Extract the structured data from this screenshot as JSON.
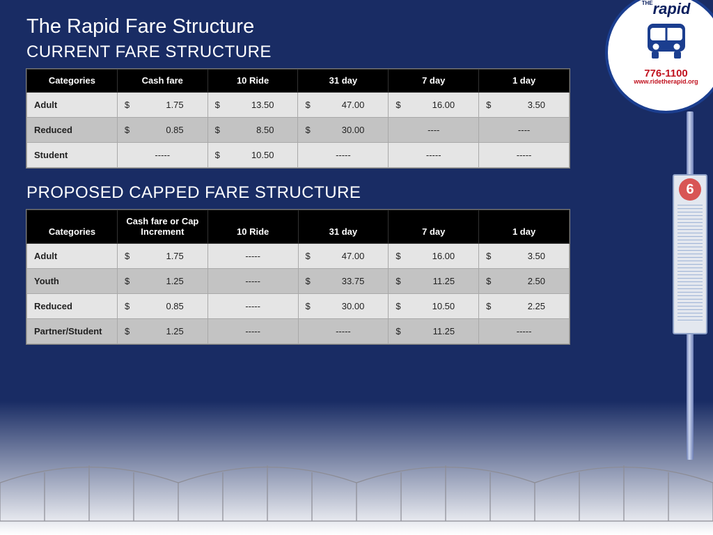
{
  "title": "The Rapid Fare Structure",
  "sections": {
    "current": {
      "heading": "CURRENT FARE STRUCTURE",
      "columns": [
        "Categories",
        "Cash fare",
        "10 Ride",
        "31 day",
        "7 day",
        "1 day"
      ],
      "rows": [
        {
          "cat": "Adult",
          "cells": [
            {
              "v": "1.75"
            },
            {
              "v": "13.50"
            },
            {
              "v": "47.00"
            },
            {
              "v": "16.00"
            },
            {
              "v": "3.50"
            }
          ]
        },
        {
          "cat": "Reduced",
          "cells": [
            {
              "v": "0.85"
            },
            {
              "v": "8.50"
            },
            {
              "v": "30.00"
            },
            {
              "d": "----"
            },
            {
              "d": "----"
            }
          ]
        },
        {
          "cat": "Student",
          "cells": [
            {
              "d": "-----"
            },
            {
              "v": "10.50"
            },
            {
              "d": "-----"
            },
            {
              "d": "-----"
            },
            {
              "d": "-----"
            }
          ]
        }
      ]
    },
    "proposed": {
      "heading": "PROPOSED CAPPED FARE STRUCTURE",
      "columns": [
        "Categories",
        "Cash fare or Cap Increment",
        "10 Ride",
        "31 day",
        "7 day",
        "1 day"
      ],
      "rows": [
        {
          "cat": "Adult",
          "cells": [
            {
              "v": "1.75"
            },
            {
              "d": "-----"
            },
            {
              "v": "47.00"
            },
            {
              "v": "16.00"
            },
            {
              "v": "3.50"
            }
          ]
        },
        {
          "cat": "Youth",
          "cells": [
            {
              "v": "1.25"
            },
            {
              "d": "-----"
            },
            {
              "v": "33.75"
            },
            {
              "v": "11.25"
            },
            {
              "v": "2.50"
            }
          ]
        },
        {
          "cat": "Reduced",
          "cells": [
            {
              "v": "0.85"
            },
            {
              "d": "-----"
            },
            {
              "v": "30.00"
            },
            {
              "v": "10.50"
            },
            {
              "v": "2.25"
            }
          ]
        },
        {
          "cat": "Partner/Student",
          "cells": [
            {
              "v": "1.25"
            },
            {
              "d": "-----"
            },
            {
              "d": "-----"
            },
            {
              "v": "11.25"
            },
            {
              "d": "-----"
            }
          ]
        }
      ]
    }
  },
  "sign": {
    "logo_the": "THE",
    "logo_text": "rapid",
    "phone": "776-1100",
    "url": "www.ridetherapid.org",
    "route": "6"
  },
  "colors": {
    "bg_top": "#192c64",
    "bg_bottom": "#ffffff",
    "header_bg": "#000000",
    "row_odd": "#e5e5e5",
    "row_even": "#c3c3c3",
    "text_white": "#ffffff",
    "accent_red": "#c1121f",
    "border": "#a9a9a9"
  },
  "currency": "$"
}
